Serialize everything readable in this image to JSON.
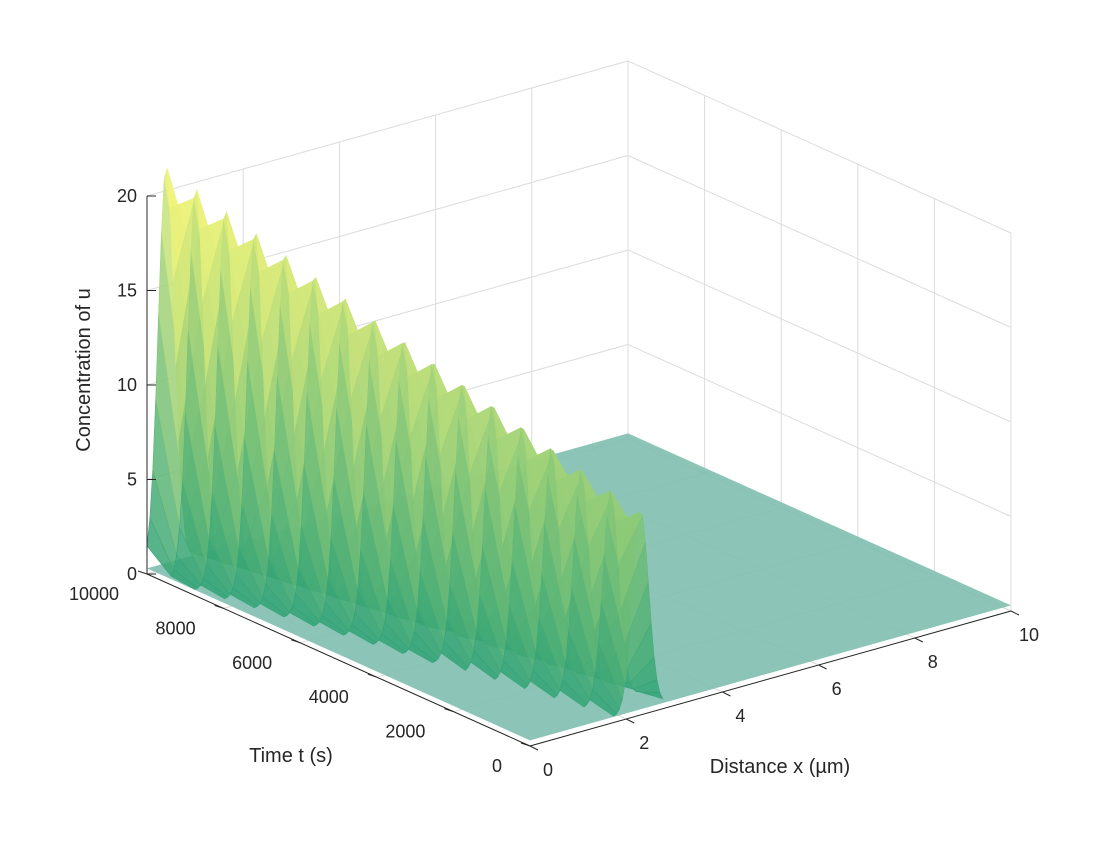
{
  "chart_data": {
    "type": "surface",
    "title": "",
    "xlabel": "Distance x (µm)",
    "ylabel": "Time t (s)",
    "zlabel": "Concentration of u",
    "xlim": [
      0,
      10
    ],
    "ylim": [
      0,
      10000
    ],
    "zlim": [
      0,
      20
    ],
    "x_ticks": [
      {
        "value": 0,
        "label": "0"
      },
      {
        "value": 2,
        "label": "2"
      },
      {
        "value": 4,
        "label": "4"
      },
      {
        "value": 6,
        "label": "6"
      },
      {
        "value": 8,
        "label": "8"
      },
      {
        "value": 10,
        "label": "10"
      }
    ],
    "y_ticks": [
      {
        "value": 0,
        "label": "0"
      },
      {
        "value": 2000,
        "label": "2000"
      },
      {
        "value": 4000,
        "label": "4000"
      },
      {
        "value": 6000,
        "label": "6000"
      },
      {
        "value": 8000,
        "label": "8000"
      },
      {
        "value": 10000,
        "label": "10000"
      }
    ],
    "z_ticks": [
      {
        "value": 0,
        "label": "0"
      },
      {
        "value": 5,
        "label": "5"
      },
      {
        "value": 10,
        "label": "10"
      },
      {
        "value": 15,
        "label": "15"
      },
      {
        "value": 20,
        "label": "20"
      }
    ],
    "grid": true,
    "colormap": {
      "low": "#2ca075",
      "high": "#f7f77a"
    },
    "surface": {
      "baseline": 0.3,
      "peak_x_at_t0": 2.3,
      "peak_x_at_t10000": 0.4,
      "peak_height_at_t0": 10.5,
      "peak_height_at_t10000": 21.0,
      "peak_width": 0.35
    }
  }
}
